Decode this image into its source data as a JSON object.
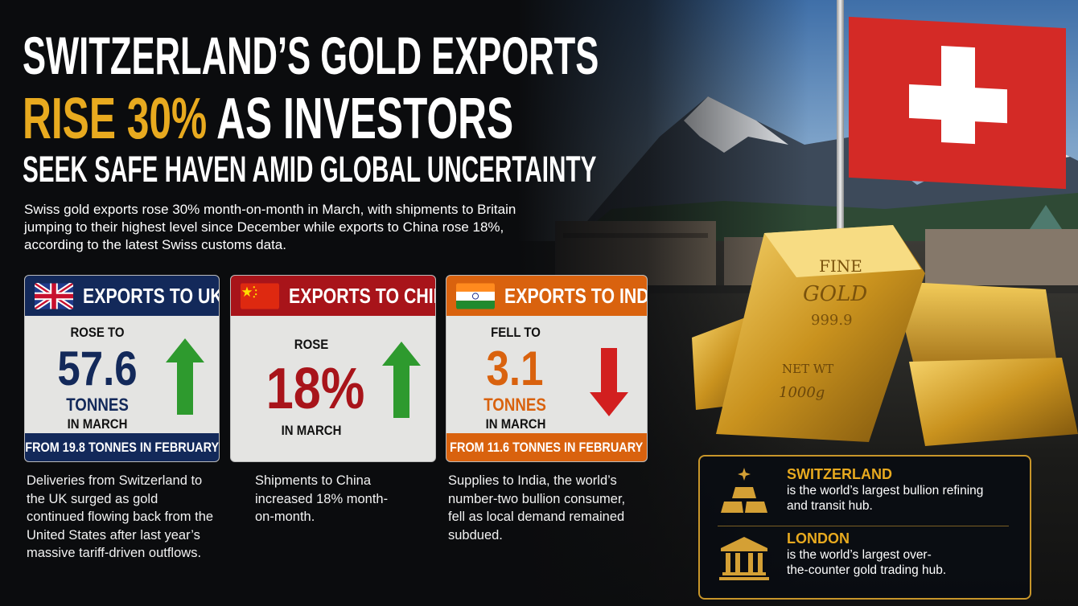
{
  "headline": {
    "line1": "SWITZERLAND’S GOLD EXPORTS",
    "line2_highlight": "RISE 30%",
    "line2_rest": "AS INVESTORS",
    "line3": "SEEK SAFE HAVEN AMID GLOBAL UNCERTAINTY"
  },
  "intro": "Swiss gold exports rose 30% month-on-month in March, with shipments to Britain jumping to their highest level since December while exports to China rose 18%, according to the latest Swiss customs data.",
  "cards": [
    {
      "title": "EXPORTS TO UK",
      "flag": "uk-flag-icon",
      "top_label": "ROSE TO",
      "value": "57.6",
      "unit": "TONNES",
      "period": "IN MARCH",
      "footer": "FROM 19.8 TONNES IN FEBRUARY",
      "direction": "up",
      "color": "#13295a",
      "description": "Deliveries from Switzerland to the UK surged as gold continued flowing back from the United States after last year’s massive tariff-driven outflows."
    },
    {
      "title": "EXPORTS TO CHINA",
      "flag": "china-flag-icon",
      "top_label": "ROSE",
      "value": "18%",
      "period": "IN MARCH",
      "direction": "up",
      "color": "#a8141a",
      "description": "Shipments to China increased 18% month-on-month."
    },
    {
      "title": "EXPORTS TO INDIA",
      "flag": "india-flag-icon",
      "top_label": "FELL TO",
      "value": "3.1",
      "unit": "TONNES",
      "period": "IN MARCH",
      "footer": "FROM 11.6 TONNES IN FEBRUARY",
      "direction": "down",
      "color": "#d9620e",
      "description": "Supplies to India, the world’s number-two bullion consumer, fell as local demand remained subdued."
    }
  ],
  "gold_bar": {
    "line1": "FINE",
    "line2": "GOLD",
    "line3": "999.9",
    "line4": "NET WT",
    "line5": "1000g"
  },
  "info_box": [
    {
      "icon": "gold-bars-icon",
      "title": "SWITZERLAND",
      "text": "is the world’s largest bullion refining and transit hub."
    },
    {
      "icon": "bank-building-icon",
      "title": "LONDON",
      "text": "is the world’s largest over-the-counter gold trading hub."
    }
  ],
  "colors": {
    "gold": "#e8aa1f",
    "up_arrow": "#2e9a2e",
    "down_arrow": "#d21f1f"
  }
}
